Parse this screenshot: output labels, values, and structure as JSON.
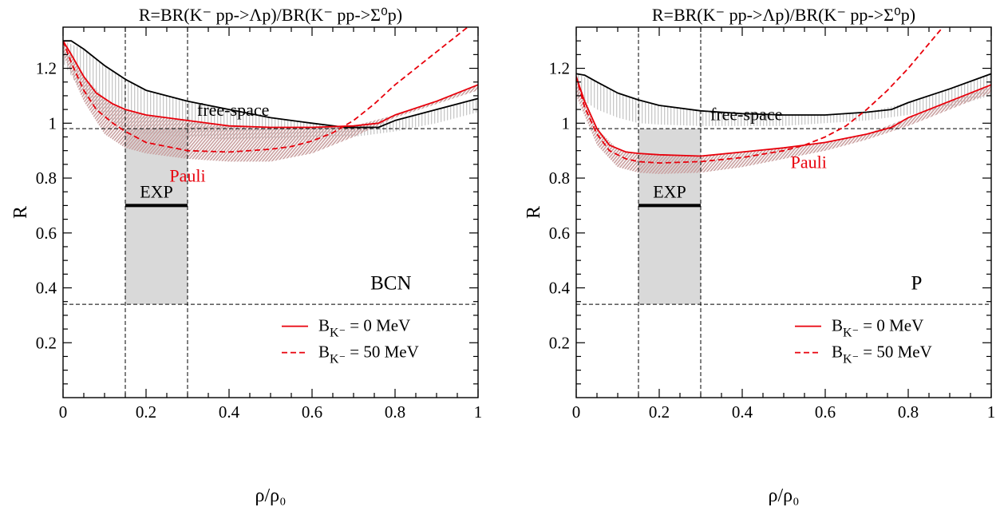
{
  "chart_data": [
    {
      "type": "line",
      "title": "R=BR(K⁻ pp->Λp)/BR(K⁻ pp->Σ⁰p)",
      "xlabel": "ρ/ρ₀",
      "ylabel": "R",
      "xlim": [
        0,
        1
      ],
      "ylim": [
        0,
        1.35
      ],
      "xticks": [
        "0",
        "0.2",
        "0.4",
        "0.6",
        "0.8",
        "1"
      ],
      "yticks": [
        "0.2",
        "0.4",
        "0.6",
        "0.8",
        "1",
        "1.2"
      ],
      "model_label": "BCN",
      "annotations": {
        "free_space": "free-space",
        "pauli": "Pauli",
        "exp": "EXP"
      },
      "exp_band": {
        "x": [
          0.15,
          0.3
        ],
        "y": [
          0.34,
          0.98
        ],
        "marker_y": 0.7
      },
      "reference_lines": {
        "h": [
          0.98,
          0.34
        ],
        "v": [
          0.15,
          0.3
        ]
      },
      "legend": {
        "base": "B",
        "sub": "K⁻",
        "entries": [
          " = 0 MeV",
          " = 50 MeV"
        ]
      },
      "colors": {
        "free": "#000000",
        "pauli": "#e8000b",
        "band_gray": "#c8c8c8",
        "band_pink": "#c9a0a0",
        "exp_fill": "#d9d9d9"
      },
      "series": [
        {
          "curve": "free",
          "style": "solid",
          "x": [
            0,
            0.02,
            0.05,
            0.1,
            0.15,
            0.2,
            0.3,
            0.4,
            0.5,
            0.6,
            0.68,
            0.76,
            0.8,
            0.9,
            1.0
          ],
          "values": [
            1.3,
            1.3,
            1.27,
            1.21,
            1.16,
            1.12,
            1.08,
            1.05,
            1.02,
            1.0,
            0.985,
            0.985,
            1.01,
            1.05,
            1.09
          ]
        },
        {
          "curve": "pauli",
          "style": "solid",
          "x": [
            0,
            0.02,
            0.05,
            0.08,
            0.12,
            0.15,
            0.2,
            0.3,
            0.4,
            0.5,
            0.6,
            0.7,
            0.76,
            0.8,
            0.9,
            1.0
          ],
          "values": [
            1.3,
            1.25,
            1.17,
            1.11,
            1.07,
            1.05,
            1.03,
            1.01,
            0.99,
            0.985,
            0.985,
            0.99,
            1.0,
            1.03,
            1.08,
            1.14
          ]
        },
        {
          "curve": "pauli",
          "style": "dashed",
          "x": [
            0,
            0.02,
            0.05,
            0.08,
            0.12,
            0.15,
            0.2,
            0.3,
            0.4,
            0.5,
            0.55,
            0.6,
            0.65,
            0.7,
            0.75,
            0.8,
            0.9,
            1.0
          ],
          "values": [
            1.3,
            1.22,
            1.12,
            1.05,
            1.0,
            0.97,
            0.93,
            0.9,
            0.895,
            0.905,
            0.915,
            0.935,
            0.965,
            1.01,
            1.07,
            1.14,
            1.26,
            1.38
          ]
        }
      ],
      "bands": [
        {
          "curve": "free",
          "x": [
            0,
            0.05,
            0.1,
            0.15,
            0.2,
            0.3,
            0.4,
            0.5,
            0.6,
            0.7,
            0.8,
            0.9,
            1.0
          ],
          "lower": [
            1.22,
            1.1,
            1.02,
            0.98,
            0.96,
            0.95,
            0.94,
            0.94,
            0.94,
            0.95,
            0.97,
            1.0,
            1.04
          ],
          "upper": [
            1.3,
            1.27,
            1.21,
            1.16,
            1.12,
            1.08,
            1.05,
            1.02,
            1.0,
            0.985,
            1.01,
            1.05,
            1.09
          ]
        },
        {
          "curve": "pauli",
          "x": [
            0,
            0.05,
            0.1,
            0.15,
            0.2,
            0.3,
            0.4,
            0.5,
            0.6,
            0.7,
            0.8,
            0.9,
            1.0
          ],
          "lower": [
            1.25,
            1.08,
            0.96,
            0.91,
            0.89,
            0.87,
            0.86,
            0.86,
            0.89,
            0.95,
            1.02,
            1.07,
            1.12
          ],
          "upper": [
            1.3,
            1.17,
            1.09,
            1.05,
            1.03,
            1.01,
            0.99,
            0.985,
            0.985,
            0.99,
            1.03,
            1.08,
            1.14
          ]
        }
      ]
    },
    {
      "type": "line",
      "title": "R=BR(K⁻ pp->Λp)/BR(K⁻ pp->Σ⁰p)",
      "xlabel": "ρ/ρ₀",
      "ylabel": "R",
      "xlim": [
        0,
        1
      ],
      "ylim": [
        0,
        1.35
      ],
      "xticks": [
        "0",
        "0.2",
        "0.4",
        "0.6",
        "0.8",
        "1"
      ],
      "yticks": [
        "0.2",
        "0.4",
        "0.6",
        "0.8",
        "1",
        "1.2"
      ],
      "model_label": "P",
      "annotations": {
        "free_space": "free-space",
        "pauli": "Pauli",
        "exp": "EXP"
      },
      "exp_band": {
        "x": [
          0.15,
          0.3
        ],
        "y": [
          0.34,
          0.98
        ],
        "marker_y": 0.7
      },
      "reference_lines": {
        "h": [
          0.98,
          0.34
        ],
        "v": [
          0.15,
          0.3
        ]
      },
      "legend": {
        "base": "B",
        "sub": "K⁻",
        "entries": [
          " = 0 MeV",
          " = 50 MeV"
        ]
      },
      "colors": {
        "free": "#000000",
        "pauli": "#e8000b",
        "band_gray": "#c8c8c8",
        "band_pink": "#c9a0a0",
        "exp_fill": "#d9d9d9"
      },
      "series": [
        {
          "curve": "free",
          "style": "solid",
          "x": [
            0,
            0.02,
            0.05,
            0.1,
            0.15,
            0.2,
            0.3,
            0.4,
            0.5,
            0.6,
            0.7,
            0.76,
            0.8,
            0.9,
            1.0
          ],
          "values": [
            1.18,
            1.175,
            1.15,
            1.11,
            1.085,
            1.065,
            1.045,
            1.035,
            1.03,
            1.03,
            1.04,
            1.05,
            1.075,
            1.125,
            1.18
          ]
        },
        {
          "curve": "pauli",
          "style": "solid",
          "x": [
            0,
            0.02,
            0.05,
            0.08,
            0.12,
            0.15,
            0.2,
            0.3,
            0.4,
            0.5,
            0.6,
            0.7,
            0.76,
            0.8,
            0.9,
            1.0
          ],
          "values": [
            1.17,
            1.08,
            0.98,
            0.92,
            0.895,
            0.89,
            0.885,
            0.88,
            0.895,
            0.91,
            0.93,
            0.96,
            0.985,
            1.02,
            1.08,
            1.14
          ]
        },
        {
          "curve": "pauli",
          "style": "dashed",
          "x": [
            0,
            0.02,
            0.05,
            0.08,
            0.12,
            0.15,
            0.2,
            0.3,
            0.4,
            0.5,
            0.55,
            0.6,
            0.65,
            0.7,
            0.75,
            0.8,
            0.9,
            1.0
          ],
          "values": [
            1.17,
            1.06,
            0.96,
            0.9,
            0.87,
            0.86,
            0.855,
            0.86,
            0.875,
            0.9,
            0.92,
            0.95,
            0.99,
            1.05,
            1.12,
            1.2,
            1.38,
            1.6
          ]
        }
      ],
      "bands": [
        {
          "curve": "free",
          "x": [
            0,
            0.05,
            0.1,
            0.15,
            0.2,
            0.3,
            0.4,
            0.5,
            0.6,
            0.7,
            0.8,
            0.9,
            1.0
          ],
          "lower": [
            1.1,
            1.05,
            1.02,
            1.0,
            0.995,
            0.99,
            0.99,
            0.99,
            1.0,
            1.01,
            1.03,
            1.06,
            1.1
          ],
          "upper": [
            1.18,
            1.15,
            1.11,
            1.085,
            1.065,
            1.045,
            1.035,
            1.03,
            1.03,
            1.04,
            1.075,
            1.125,
            1.18
          ]
        },
        {
          "curve": "pauli",
          "x": [
            0,
            0.05,
            0.1,
            0.15,
            0.2,
            0.3,
            0.4,
            0.5,
            0.6,
            0.7,
            0.8,
            0.9,
            1.0
          ],
          "lower": [
            1.1,
            0.92,
            0.84,
            0.82,
            0.815,
            0.82,
            0.84,
            0.87,
            0.9,
            0.94,
            0.99,
            1.05,
            1.11
          ],
          "upper": [
            1.17,
            0.98,
            0.905,
            0.89,
            0.885,
            0.88,
            0.895,
            0.91,
            0.93,
            0.96,
            1.02,
            1.08,
            1.14
          ]
        }
      ]
    }
  ]
}
